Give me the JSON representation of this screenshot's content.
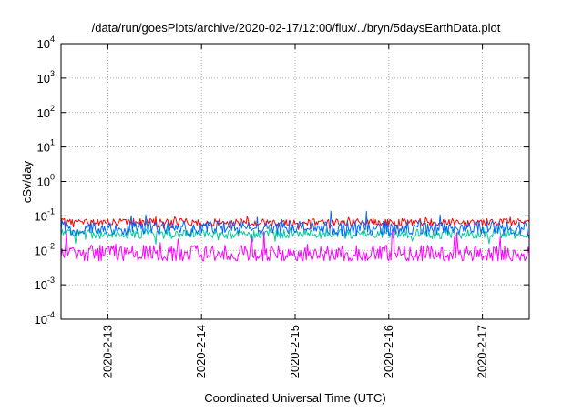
{
  "chart_data": {
    "type": "line",
    "title": "/data/run/goesPlots/archive/2020-02-17/12:00/flux/../bryn/5daysEarthData.plot",
    "xlabel": "Coordinated Universal Time (UTC)",
    "ylabel": "cSv/day",
    "y_scale": "log",
    "ylim": [
      0.0001,
      10000
    ],
    "y_ticks": [
      {
        "base": "10",
        "exp": "-4",
        "value": 0.0001
      },
      {
        "base": "10",
        "exp": "-3",
        "value": 0.001
      },
      {
        "base": "10",
        "exp": "-2",
        "value": 0.01
      },
      {
        "base": "10",
        "exp": "-1",
        "value": 0.1
      },
      {
        "base": "10",
        "exp": "0",
        "value": 1
      },
      {
        "base": "10",
        "exp": "1",
        "value": 10
      },
      {
        "base": "10",
        "exp": "2",
        "value": 100
      },
      {
        "base": "10",
        "exp": "3",
        "value": 1000
      },
      {
        "base": "10",
        "exp": "4",
        "value": 10000
      }
    ],
    "xlim": [
      "2020-02-12 12:00",
      "2020-02-17 12:00"
    ],
    "x_ticks": [
      {
        "label": "2020-2-13",
        "date": "2020-02-13"
      },
      {
        "label": "2020-2-14",
        "date": "2020-02-14"
      },
      {
        "label": "2020-2-15",
        "date": "2020-02-15"
      },
      {
        "label": "2020-2-16",
        "date": "2020-02-16"
      },
      {
        "label": "2020-2-17",
        "date": "2020-02-17"
      }
    ],
    "grid": true,
    "series": [
      {
        "color": "#ff0000",
        "typical": 0.065,
        "min": 0.04,
        "max": 0.1
      },
      {
        "color": "#00cc99",
        "typical": 0.03,
        "min": 0.015,
        "max": 0.05
      },
      {
        "color": "#0066ff",
        "typical": 0.045,
        "min": 0.025,
        "max": 0.14
      },
      {
        "color": "#ff00ff",
        "typical": 0.008,
        "min": 0.005,
        "max": 0.04
      }
    ]
  }
}
